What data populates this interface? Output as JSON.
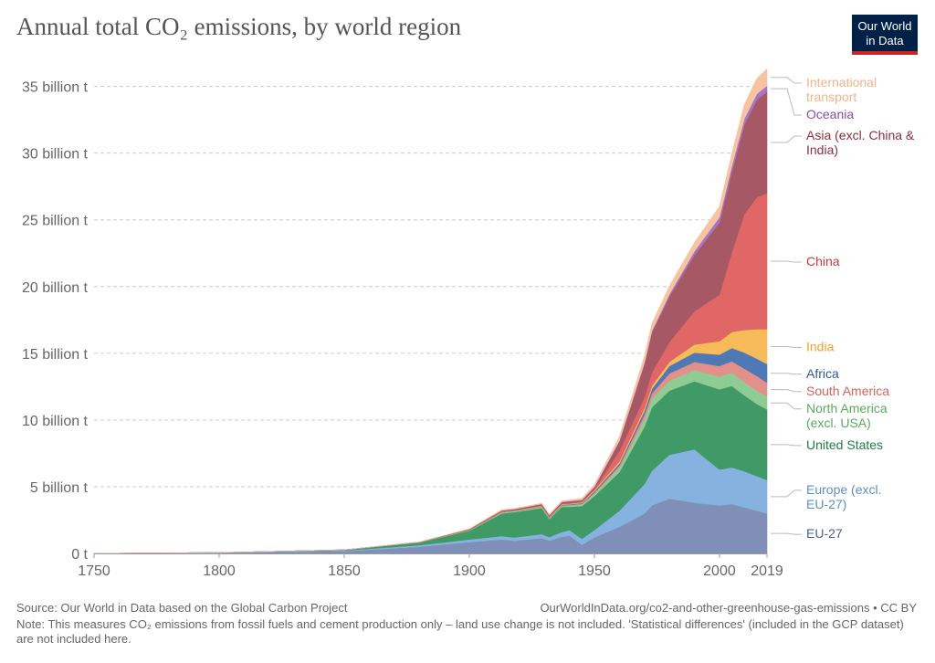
{
  "title": "Annual total CO₂ emissions, by world region",
  "logo": {
    "line1": "Our World",
    "line2": "in Data"
  },
  "footer": {
    "source": "Source: Our World in Data based on the Global Carbon Project",
    "url": "OurWorldInData.org/co2-and-other-greenhouse-gas-emissions • CC BY",
    "note": "Note: This measures CO₂ emissions from fossil fuels and cement production only – land use change is not included. 'Statistical differences' (included in the GCP dataset) are not included here."
  },
  "chart_data": {
    "type": "area",
    "stacked": true,
    "title": "Annual total CO₂ emissions, by world region",
    "xlim": [
      1750,
      2019
    ],
    "ylim": [
      0,
      36
    ],
    "x_ticks": [
      "1750",
      "1800",
      "1850",
      "1900",
      "1950",
      "2000",
      "2019"
    ],
    "x_tick_values": [
      1750,
      1800,
      1850,
      1900,
      1950,
      2000,
      2019
    ],
    "y_ticks": [
      "0 t",
      "5 billion t",
      "10 billion t",
      "15 billion t",
      "20 billion t",
      "25 billion t",
      "30 billion t",
      "35 billion t"
    ],
    "y_tick_values": [
      0,
      5,
      10,
      15,
      20,
      25,
      30,
      35
    ],
    "grid": "horizontal dashed",
    "legend": "right, labels at series ends",
    "x": [
      1750,
      1800,
      1850,
      1880,
      1900,
      1913,
      1918,
      1929,
      1932,
      1937,
      1940,
      1945,
      1950,
      1960,
      1970,
      1973,
      1980,
      1990,
      2000,
      2005,
      2010,
      2015,
      2019
    ],
    "series": [
      {
        "name": "EU-27",
        "color": "#7f8fb8",
        "values": [
          0.01,
          0.04,
          0.17,
          0.5,
          0.85,
          1.05,
          0.95,
          1.15,
          0.95,
          1.25,
          1.35,
          0.65,
          1.2,
          2.0,
          3.0,
          3.6,
          4.1,
          3.8,
          3.6,
          3.7,
          3.45,
          3.2,
          3.0
        ]
      },
      {
        "name": "Europe (excl. EU-27)",
        "color": "#85b2de",
        "values": [
          0.0,
          0.02,
          0.05,
          0.12,
          0.2,
          0.25,
          0.25,
          0.3,
          0.28,
          0.35,
          0.4,
          0.45,
          0.55,
          1.2,
          2.2,
          2.6,
          3.3,
          4.0,
          2.7,
          2.75,
          2.7,
          2.6,
          2.5
        ]
      },
      {
        "name": "United States",
        "color": "#3f9a66",
        "values": [
          0.0,
          0.0,
          0.05,
          0.2,
          0.65,
          1.7,
          1.9,
          1.95,
          1.35,
          1.9,
          1.75,
          2.45,
          2.55,
          2.9,
          4.3,
          4.75,
          4.8,
          5.1,
          6.0,
          6.1,
          5.7,
          5.4,
          5.3
        ]
      },
      {
        "name": "North America (excl. USA)",
        "color": "#8fcc93",
        "values": [
          0.0,
          0.0,
          0.0,
          0.01,
          0.03,
          0.06,
          0.06,
          0.08,
          0.06,
          0.08,
          0.09,
          0.12,
          0.16,
          0.3,
          0.55,
          0.65,
          0.75,
          0.85,
          0.95,
          1.0,
          1.0,
          1.0,
          0.95
        ]
      },
      {
        "name": "South America",
        "color": "#e3908b",
        "values": [
          0.0,
          0.0,
          0.0,
          0.0,
          0.01,
          0.02,
          0.02,
          0.03,
          0.03,
          0.04,
          0.04,
          0.05,
          0.1,
          0.2,
          0.35,
          0.4,
          0.55,
          0.6,
          0.8,
          0.85,
          1.0,
          1.1,
          1.05
        ]
      },
      {
        "name": "Africa",
        "color": "#4e79b5",
        "values": [
          0.0,
          0.0,
          0.0,
          0.0,
          0.01,
          0.02,
          0.02,
          0.03,
          0.03,
          0.04,
          0.05,
          0.06,
          0.1,
          0.15,
          0.3,
          0.35,
          0.55,
          0.7,
          0.85,
          1.0,
          1.2,
          1.3,
          1.4
        ]
      },
      {
        "name": "India",
        "color": "#f8bb59",
        "values": [
          0.0,
          0.0,
          0.0,
          0.01,
          0.02,
          0.03,
          0.03,
          0.04,
          0.04,
          0.05,
          0.05,
          0.06,
          0.08,
          0.15,
          0.2,
          0.22,
          0.3,
          0.6,
          1.0,
          1.2,
          1.7,
          2.2,
          2.6
        ]
      },
      {
        "name": "China",
        "color": "#e06765",
        "values": [
          0.0,
          0.0,
          0.0,
          0.0,
          0.0,
          0.01,
          0.01,
          0.01,
          0.02,
          0.02,
          0.03,
          0.05,
          0.08,
          0.8,
          0.8,
          1.0,
          1.5,
          2.5,
          3.5,
          6.0,
          8.7,
          9.9,
          10.2
        ]
      },
      {
        "name": "Asia (excl. China & India)",
        "color": "#a65865",
        "values": [
          0.0,
          0.0,
          0.0,
          0.01,
          0.05,
          0.08,
          0.08,
          0.1,
          0.1,
          0.12,
          0.15,
          0.1,
          0.15,
          0.7,
          2.5,
          3.0,
          3.4,
          4.2,
          5.4,
          6.0,
          6.7,
          7.3,
          7.6
        ]
      },
      {
        "name": "Oceania",
        "color": "#a674c0",
        "values": [
          0.0,
          0.0,
          0.0,
          0.0,
          0.01,
          0.01,
          0.01,
          0.02,
          0.02,
          0.02,
          0.02,
          0.03,
          0.04,
          0.06,
          0.1,
          0.12,
          0.18,
          0.3,
          0.4,
          0.45,
          0.45,
          0.45,
          0.45
        ]
      },
      {
        "name": "International transport",
        "color": "#f6c4a0",
        "values": [
          0.0,
          0.0,
          0.0,
          0.0,
          0.02,
          0.04,
          0.04,
          0.06,
          0.05,
          0.07,
          0.08,
          0.1,
          0.15,
          0.3,
          0.5,
          0.55,
          0.6,
          0.65,
          0.8,
          0.95,
          1.05,
          1.15,
          1.25
        ]
      }
    ]
  }
}
